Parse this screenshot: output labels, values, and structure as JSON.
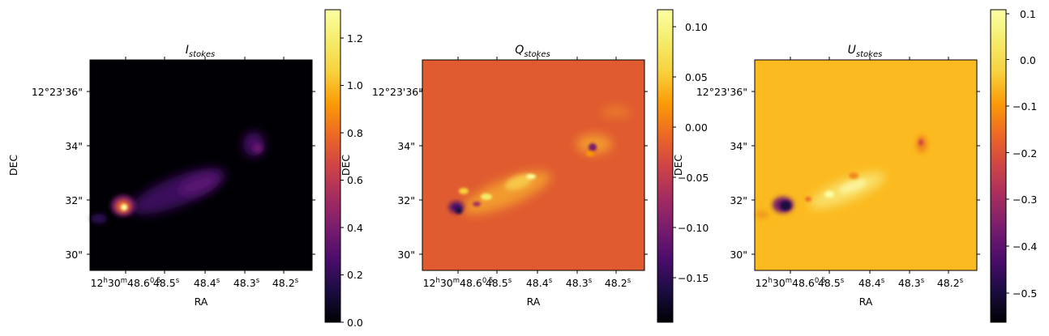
{
  "chart_data": [
    {
      "type": "heatmap",
      "title_main": "I",
      "title_sub": "stokes",
      "xlabel": "RA",
      "ylabel": "DEC",
      "x_ticks": [
        {
          "h": "12",
          "m": "30",
          "s": "48.6",
          "frac": "0.5"
        },
        {
          "s": "48.5",
          "frac": "0.5"
        },
        {
          "s": "48.4"
        },
        {
          "s": "48.3"
        },
        {
          "s": "48.2"
        }
      ],
      "y_ticks": [
        "12°23'36\"",
        "34\"",
        "32\"",
        "30\""
      ],
      "colormap": "inferno",
      "colorbar": {
        "ticks": [
          "0.0",
          "0.2",
          "0.4",
          "0.6",
          "0.8",
          "1.0",
          "1.2"
        ],
        "vmin": 0.0,
        "vmax": 1.32
      },
      "background_color": "#000004"
    },
    {
      "type": "heatmap",
      "title_main": "Q",
      "title_sub": "stokes",
      "xlabel": "RA",
      "ylabel": "DEC",
      "x_ticks": [
        {
          "h": "12",
          "m": "30",
          "s": "48.6",
          "frac": "0.5"
        },
        {
          "s": "48.5",
          "frac": "0.5"
        },
        {
          "s": "48.4"
        },
        {
          "s": "48.3"
        },
        {
          "s": "48.2"
        }
      ],
      "y_ticks": [
        "12°23'36\"",
        "34\"",
        "32\"",
        "30\""
      ],
      "colormap": "inferno",
      "colorbar": {
        "ticks": [
          "0.10",
          "0.05",
          "0.00",
          "−0.05",
          "−0.10",
          "−0.15"
        ],
        "vmin": -0.195,
        "vmax": 0.118
      },
      "background_color": "#e05b30"
    },
    {
      "type": "heatmap",
      "title_main": "U",
      "title_sub": "stokes",
      "xlabel": "RA",
      "ylabel": "DEC",
      "x_ticks": [
        {
          "h": "12",
          "m": "30",
          "s": "48.6",
          "frac": "0.5"
        },
        {
          "s": "48.5",
          "frac": "0.5"
        },
        {
          "s": "48.4"
        },
        {
          "s": "48.3"
        },
        {
          "s": "48.2"
        }
      ],
      "y_ticks": [
        "12°23'36\"",
        "34\"",
        "32\"",
        "30\""
      ],
      "colormap": "inferno",
      "colorbar": {
        "ticks": [
          "0.1",
          "0.0",
          "−0.1",
          "−0.2",
          "−0.3",
          "−0.4",
          "−0.5"
        ],
        "vmin": -0.555,
        "vmax": 0.105
      },
      "background_color": "#fbba1f"
    }
  ]
}
